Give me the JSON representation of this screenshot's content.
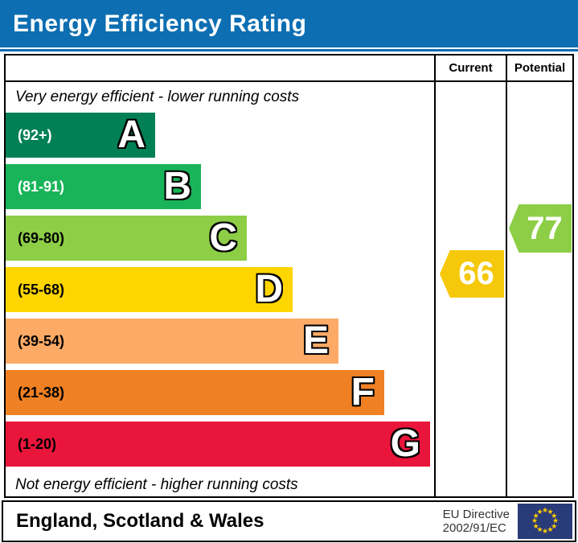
{
  "header": {
    "title": "Energy Efficiency Rating"
  },
  "table": {
    "columns": {
      "current": "Current",
      "potential": "Potential"
    },
    "top_caption": "Very energy efficient - lower running costs",
    "bottom_caption": "Not energy efficient - higher running costs",
    "bands": [
      {
        "letter": "A",
        "range": "(92+)",
        "color": "#008054",
        "label_color": "#ffffff"
      },
      {
        "letter": "B",
        "range": "(81-91)",
        "color": "#19b459",
        "label_color": "#ffffff"
      },
      {
        "letter": "C",
        "range": "(69-80)",
        "color": "#8dce46",
        "label_color": "#000000"
      },
      {
        "letter": "D",
        "range": "(55-68)",
        "color": "#ffd500",
        "label_color": "#000000"
      },
      {
        "letter": "E",
        "range": "(39-54)",
        "color": "#fcaa65",
        "label_color": "#000000"
      },
      {
        "letter": "F",
        "range": "(21-38)",
        "color": "#ef8023",
        "label_color": "#000000"
      },
      {
        "letter": "G",
        "range": "(1-20)",
        "color": "#e9153b",
        "label_color": "#000000"
      }
    ],
    "current_rating": {
      "value": "66",
      "band": "D",
      "color": "#f5c90a"
    },
    "potential_rating": {
      "value": "77",
      "band": "C",
      "color": "#8dce46"
    }
  },
  "footer": {
    "region": "England, Scotland & Wales",
    "directive_line1": "EU Directive",
    "directive_line2": "2002/91/EC",
    "eu_flag": {
      "background": "#2a3b7a",
      "star_color": "#ffcc00",
      "star_glyph": "★"
    }
  },
  "chart_data": {
    "type": "bar",
    "title": "Energy Efficiency Rating",
    "categories": [
      "A",
      "B",
      "C",
      "D",
      "E",
      "F",
      "G"
    ],
    "band_ranges": [
      "92+",
      "81-91",
      "69-80",
      "55-68",
      "39-54",
      "21-38",
      "1-20"
    ],
    "band_colors": [
      "#008054",
      "#19b459",
      "#8dce46",
      "#ffd500",
      "#fcaa65",
      "#ef8023",
      "#e9153b"
    ],
    "series": [
      {
        "name": "Current",
        "value": 66,
        "band": "D"
      },
      {
        "name": "Potential",
        "value": 77,
        "band": "C"
      }
    ],
    "xlabel": "",
    "ylabel": "",
    "value_range": [
      1,
      100
    ],
    "annotations": [
      "Very energy efficient - lower running costs",
      "Not energy efficient - higher running costs",
      "England, Scotland & Wales",
      "EU Directive 2002/91/EC"
    ]
  }
}
